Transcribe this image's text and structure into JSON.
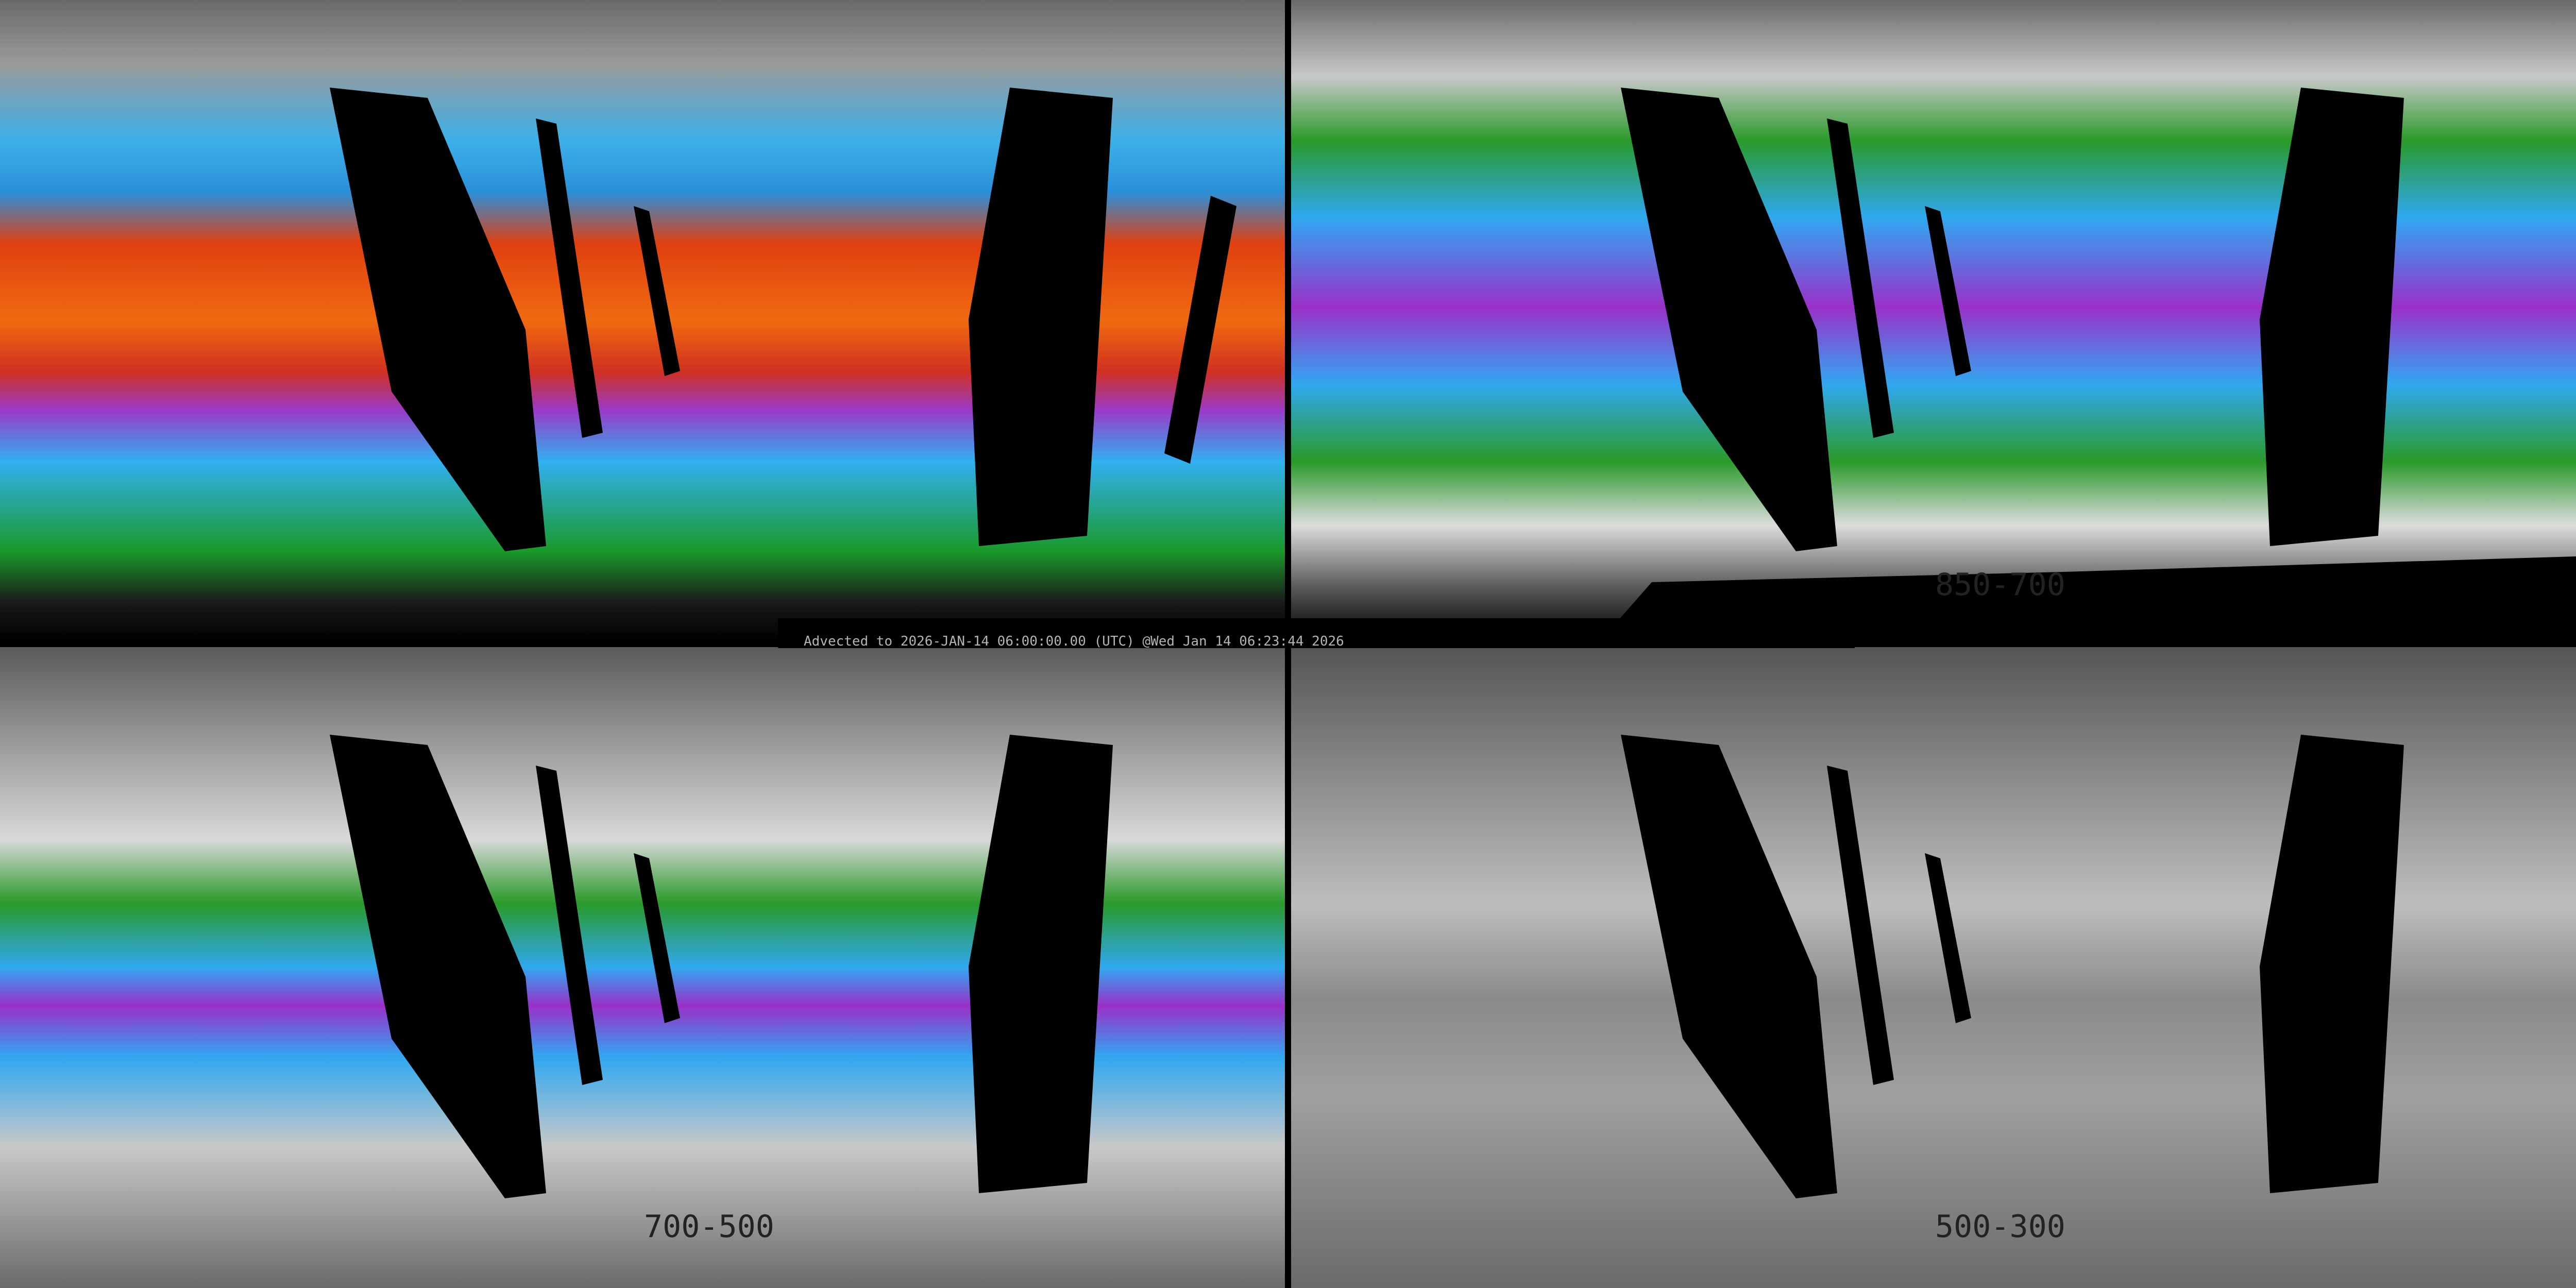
{
  "status": {
    "advected_text": "Advected to 2026-JAN-14 06:00:00.00 (UTC) @Wed Jan 14 06:23:44 2026"
  },
  "panels": [
    {
      "layer": ""
    },
    {
      "layer": "850-700"
    },
    {
      "layer": "700-500"
    },
    {
      "layer": "500-300"
    }
  ],
  "colors": {
    "no_data": "#000000",
    "low": "#808080",
    "green": "#2a9a2a",
    "blue": "#30a8f0",
    "purple": "#9a30c8",
    "red": "#e04010",
    "yellow": "#f0c000"
  }
}
